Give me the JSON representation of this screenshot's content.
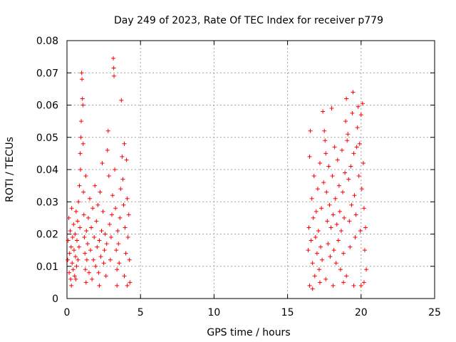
{
  "chart_data": {
    "type": "scatter",
    "title": "Day 249 of 2023, Rate Of TEC Index for receiver p779",
    "xlabel": "GPS time / hours",
    "ylabel": "ROTI / TECUs",
    "xlim": [
      0,
      25
    ],
    "ylim": [
      0,
      0.08
    ],
    "xticks": [
      0,
      5,
      10,
      15,
      20,
      25
    ],
    "xtick_labels": [
      "0",
      "5",
      "10",
      "15",
      "20",
      "25"
    ],
    "yticks": [
      0,
      0.01,
      0.02,
      0.03,
      0.04,
      0.05,
      0.06,
      0.07,
      0.08
    ],
    "ytick_labels": [
      "0",
      "0.01",
      "0.02",
      "0.03",
      "0.04",
      "0.05",
      "0.06",
      "0.07",
      "0.08"
    ],
    "grid": true,
    "marker": "+",
    "marker_color": "#ff0000",
    "series": [
      {
        "name": "ROTI",
        "points": [
          [
            0.05,
            0.012
          ],
          [
            0.08,
            0.018
          ],
          [
            0.12,
            0.025
          ],
          [
            0.15,
            0.008
          ],
          [
            0.18,
            0.014
          ],
          [
            0.22,
            0.021
          ],
          [
            0.25,
            0.006
          ],
          [
            0.28,
            0.016
          ],
          [
            0.32,
            0.028
          ],
          [
            0.35,
            0.011
          ],
          [
            0.38,
            0.019
          ],
          [
            0.42,
            0.009
          ],
          [
            0.45,
            0.023
          ],
          [
            0.48,
            0.015
          ],
          [
            0.52,
            0.007
          ],
          [
            0.55,
            0.02
          ],
          [
            0.58,
            0.013
          ],
          [
            0.62,
            0.027
          ],
          [
            0.65,
            0.01
          ],
          [
            0.68,
            0.018
          ],
          [
            0.72,
            0.024
          ],
          [
            0.75,
            0.012
          ],
          [
            0.78,
            0.03
          ],
          [
            0.82,
            0.016
          ],
          [
            0.85,
            0.035
          ],
          [
            0.88,
            0.022
          ],
          [
            0.9,
            0.045
          ],
          [
            0.92,
            0.04
          ],
          [
            0.95,
            0.05
          ],
          [
            0.97,
            0.055
          ],
          [
            1.0,
            0.07
          ],
          [
            1.02,
            0.068
          ],
          [
            1.05,
            0.062
          ],
          [
            1.08,
            0.06
          ],
          [
            1.1,
            0.048
          ],
          [
            1.12,
            0.033
          ],
          [
            1.15,
            0.026
          ],
          [
            1.18,
            0.019
          ],
          [
            1.22,
            0.014
          ],
          [
            1.25,
            0.009
          ],
          [
            1.28,
            0.038
          ],
          [
            1.32,
            0.021
          ],
          [
            1.35,
            0.012
          ],
          [
            1.4,
            0.017
          ],
          [
            1.45,
            0.025
          ],
          [
            1.5,
            0.008
          ],
          [
            1.55,
            0.031
          ],
          [
            1.6,
            0.015
          ],
          [
            1.65,
            0.022
          ],
          [
            1.7,
            0.006
          ],
          [
            1.75,
            0.028
          ],
          [
            1.8,
            0.012
          ],
          [
            1.85,
            0.019
          ],
          [
            1.9,
            0.035
          ],
          [
            1.95,
            0.01
          ],
          [
            2.0,
            0.024
          ],
          [
            2.05,
            0.016
          ],
          [
            2.1,
            0.029
          ],
          [
            2.15,
            0.008
          ],
          [
            2.2,
            0.018
          ],
          [
            2.25,
            0.033
          ],
          [
            2.3,
            0.013
          ],
          [
            2.35,
            0.021
          ],
          [
            2.4,
            0.042
          ],
          [
            2.45,
            0.027
          ],
          [
            2.5,
            0.011
          ],
          [
            2.55,
            0.015
          ],
          [
            2.6,
            0.02
          ],
          [
            2.65,
            0.007
          ],
          [
            2.7,
            0.017
          ],
          [
            2.75,
            0.046
          ],
          [
            2.8,
            0.052
          ],
          [
            2.85,
            0.038
          ],
          [
            2.9,
            0.023
          ],
          [
            2.95,
            0.012
          ],
          [
            3.0,
            0.019
          ],
          [
            3.05,
            0.026
          ],
          [
            3.1,
            0.032
          ],
          [
            3.15,
            0.0745
          ],
          [
            3.18,
            0.0715
          ],
          [
            3.2,
            0.069
          ],
          [
            3.25,
            0.04
          ],
          [
            3.3,
            0.028
          ],
          [
            3.35,
            0.015
          ],
          [
            3.4,
            0.009
          ],
          [
            3.45,
            0.021
          ],
          [
            3.5,
            0.017
          ],
          [
            3.55,
            0.011
          ],
          [
            3.6,
            0.025
          ],
          [
            3.65,
            0.034
          ],
          [
            3.7,
            0.0615
          ],
          [
            3.75,
            0.044
          ],
          [
            3.8,
            0.037
          ],
          [
            3.85,
            0.029
          ],
          [
            3.9,
            0.048
          ],
          [
            3.95,
            0.022
          ],
          [
            4.0,
            0.014
          ],
          [
            4.05,
            0.043
          ],
          [
            4.1,
            0.031
          ],
          [
            4.15,
            0.019
          ],
          [
            4.2,
            0.026
          ],
          [
            4.25,
            0.012
          ],
          [
            4.28,
            0.005
          ],
          [
            0.3,
            0.004
          ],
          [
            1.3,
            0.005
          ],
          [
            2.2,
            0.004
          ],
          [
            3.4,
            0.004
          ],
          [
            4.1,
            0.004
          ],
          [
            0.6,
            0.006
          ],
          [
            3.9,
            0.007
          ],
          [
            16.4,
            0.015
          ],
          [
            16.45,
            0.022
          ],
          [
            16.5,
            0.044
          ],
          [
            16.55,
            0.052
          ],
          [
            16.6,
            0.018
          ],
          [
            16.65,
            0.031
          ],
          [
            16.7,
            0.011
          ],
          [
            16.75,
            0.025
          ],
          [
            16.8,
            0.038
          ],
          [
            16.85,
            0.007
          ],
          [
            16.9,
            0.019
          ],
          [
            16.95,
            0.027
          ],
          [
            17.0,
            0.014
          ],
          [
            17.05,
            0.034
          ],
          [
            17.1,
            0.021
          ],
          [
            17.15,
            0.009
          ],
          [
            17.2,
            0.042
          ],
          [
            17.25,
            0.016
          ],
          [
            17.3,
            0.028
          ],
          [
            17.35,
            0.012
          ],
          [
            17.4,
            0.058
          ],
          [
            17.45,
            0.036
          ],
          [
            17.5,
            0.052
          ],
          [
            17.55,
            0.049
          ],
          [
            17.6,
            0.045
          ],
          [
            17.65,
            0.033
          ],
          [
            17.7,
            0.024
          ],
          [
            17.75,
            0.017
          ],
          [
            17.8,
            0.041
          ],
          [
            17.85,
            0.029
          ],
          [
            17.9,
            0.013
          ],
          [
            17.95,
            0.022
          ],
          [
            18.0,
            0.059
          ],
          [
            18.05,
            0.038
          ],
          [
            18.1,
            0.026
          ],
          [
            18.15,
            0.015
          ],
          [
            18.2,
            0.047
          ],
          [
            18.25,
            0.031
          ],
          [
            18.3,
            0.011
          ],
          [
            18.35,
            0.023
          ],
          [
            18.4,
            0.043
          ],
          [
            18.45,
            0.018
          ],
          [
            18.5,
            0.035
          ],
          [
            18.55,
            0.027
          ],
          [
            18.6,
            0.009
          ],
          [
            18.65,
            0.021
          ],
          [
            18.7,
            0.046
          ],
          [
            18.75,
            0.033
          ],
          [
            18.8,
            0.014
          ],
          [
            18.85,
            0.025
          ],
          [
            18.9,
            0.039
          ],
          [
            18.95,
            0.055
          ],
          [
            19.0,
            0.062
          ],
          [
            19.05,
            0.049
          ],
          [
            19.1,
            0.051
          ],
          [
            19.15,
            0.037
          ],
          [
            19.2,
            0.024
          ],
          [
            19.25,
            0.016
          ],
          [
            19.3,
            0.041
          ],
          [
            19.35,
            0.029
          ],
          [
            19.4,
            0.0575
          ],
          [
            19.45,
            0.064
          ],
          [
            19.5,
            0.045
          ],
          [
            19.55,
            0.032
          ],
          [
            19.6,
            0.019
          ],
          [
            19.65,
            0.026
          ],
          [
            19.7,
            0.047
          ],
          [
            19.75,
            0.053
          ],
          [
            19.8,
            0.0595
          ],
          [
            19.85,
            0.038
          ],
          [
            19.9,
            0.048
          ],
          [
            19.95,
            0.021
          ],
          [
            20.0,
            0.057
          ],
          [
            20.05,
            0.034
          ],
          [
            20.1,
            0.0605
          ],
          [
            20.15,
            0.042
          ],
          [
            20.2,
            0.028
          ],
          [
            20.25,
            0.015
          ],
          [
            20.3,
            0.022
          ],
          [
            20.35,
            0.009
          ],
          [
            16.5,
            0.004
          ],
          [
            17.2,
            0.005
          ],
          [
            18.1,
            0.004
          ],
          [
            18.8,
            0.005
          ],
          [
            19.5,
            0.004
          ],
          [
            20.2,
            0.005
          ],
          [
            17.6,
            0.006
          ],
          [
            19.0,
            0.007
          ],
          [
            16.7,
            0.003
          ],
          [
            20.0,
            0.004
          ]
        ]
      }
    ]
  }
}
